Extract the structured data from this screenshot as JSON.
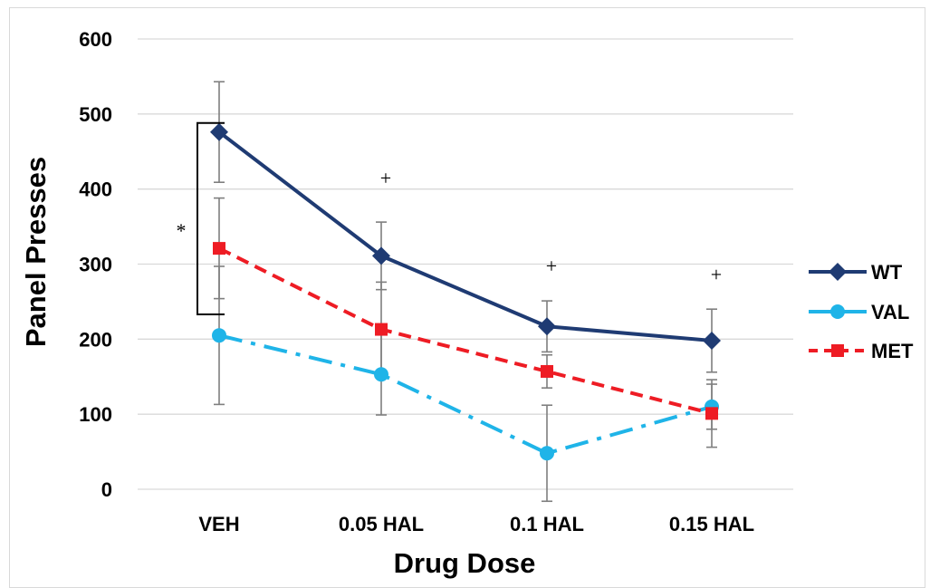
{
  "chart_data": {
    "type": "line",
    "title": "",
    "xlabel": "Drug Dose",
    "ylabel": "Panel Presses",
    "categories": [
      "VEH",
      "0.05 HAL",
      "0.1 HAL",
      "0.15 HAL"
    ],
    "ylim": [
      0,
      600
    ],
    "yticks": [
      0,
      100,
      200,
      300,
      400,
      500,
      600
    ],
    "grid": true,
    "legend_position": "right",
    "series": [
      {
        "name": "WT",
        "values": [
          476,
          311,
          217,
          198
        ],
        "errors": [
          67,
          45,
          34,
          42
        ],
        "color": "#1f3b73",
        "line_style": "solid",
        "marker": "diamond"
      },
      {
        "name": "VAL",
        "values": [
          205,
          153,
          48,
          110
        ],
        "errors": [
          92,
          54,
          64,
          30
        ],
        "color": "#1fb4e8",
        "line_style": "dash-dot",
        "marker": "circle"
      },
      {
        "name": "MET",
        "values": [
          321,
          213,
          157,
          101
        ],
        "errors": [
          67,
          63,
          22,
          45
        ],
        "color": "#ee1c24",
        "line_style": "dashed",
        "marker": "square"
      }
    ],
    "annotations": [
      {
        "text": "*",
        "category": "VEH",
        "note": "bracket from WT to VAL"
      },
      {
        "text": "+",
        "category": "0.05 HAL",
        "y": 415
      },
      {
        "text": "+",
        "category": "0.1 HAL",
        "y": 298
      },
      {
        "text": "+",
        "category": "0.15 HAL",
        "y": 287
      }
    ]
  }
}
